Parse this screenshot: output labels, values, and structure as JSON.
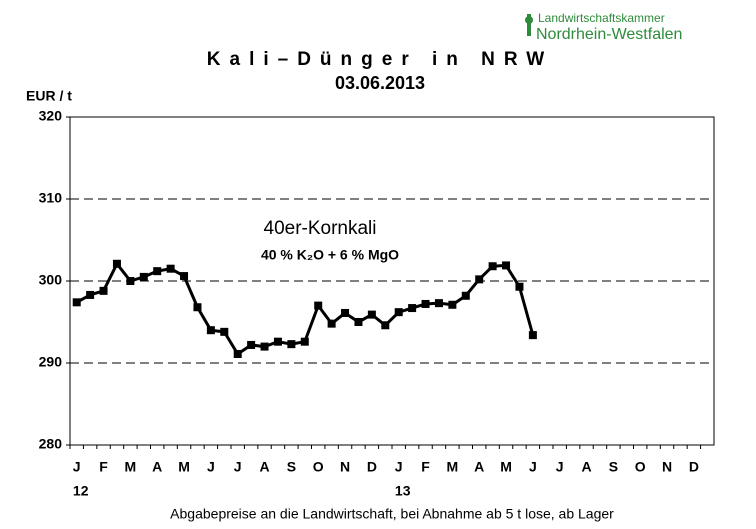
{
  "chart_data": {
    "type": "line",
    "title": "Kali–Dünger in NRW",
    "subtitle": "03.06.2013",
    "y_label": "EUR / t",
    "x_label": "Abgabepreise an die Landwirtschaft, bei Abnahme ab 5 t lose, ab Lager",
    "annotations": [
      "40er-Kornkali",
      "40 %  K₂O + 6 % MgO"
    ],
    "logo": [
      "Landwirtschaftskammer",
      "Nordrhein-Westfalen"
    ],
    "year_labels": [
      "12",
      "13"
    ],
    "categories": [
      "J",
      null,
      "F",
      null,
      "M",
      null,
      "A",
      null,
      "M",
      null,
      "J",
      null,
      "J",
      null,
      "A",
      null,
      "S",
      null,
      "O",
      null,
      "N",
      null,
      "D",
      null,
      "J",
      null,
      "F",
      null,
      "M",
      null,
      "A",
      null,
      "M",
      null,
      "J",
      null,
      "J",
      null,
      "A",
      null,
      "S",
      null,
      "O",
      null,
      "N",
      null,
      "D",
      null
    ],
    "series": [
      {
        "name": "40er-Kornkali",
        "color": "#000000",
        "values": [
          297.4,
          298.3,
          298.8,
          302.1,
          300,
          300.5,
          301.2,
          301.5,
          300.6,
          296.8,
          294,
          293.8,
          291.1,
          292.2,
          292,
          292.6,
          292.3,
          292.6,
          297,
          294.8,
          296.1,
          295,
          295.9,
          294.6,
          296.2,
          296.7,
          297.2,
          297.3,
          297.1,
          298.2,
          300.2,
          301.8,
          301.9,
          299.3,
          293.4,
          null,
          null,
          null,
          null,
          null,
          null,
          null,
          null,
          null,
          null,
          null,
          null,
          null
        ]
      }
    ],
    "ylim": [
      280,
      320
    ],
    "yticks": [
      280,
      290,
      300,
      310,
      320
    ],
    "grid": true
  }
}
